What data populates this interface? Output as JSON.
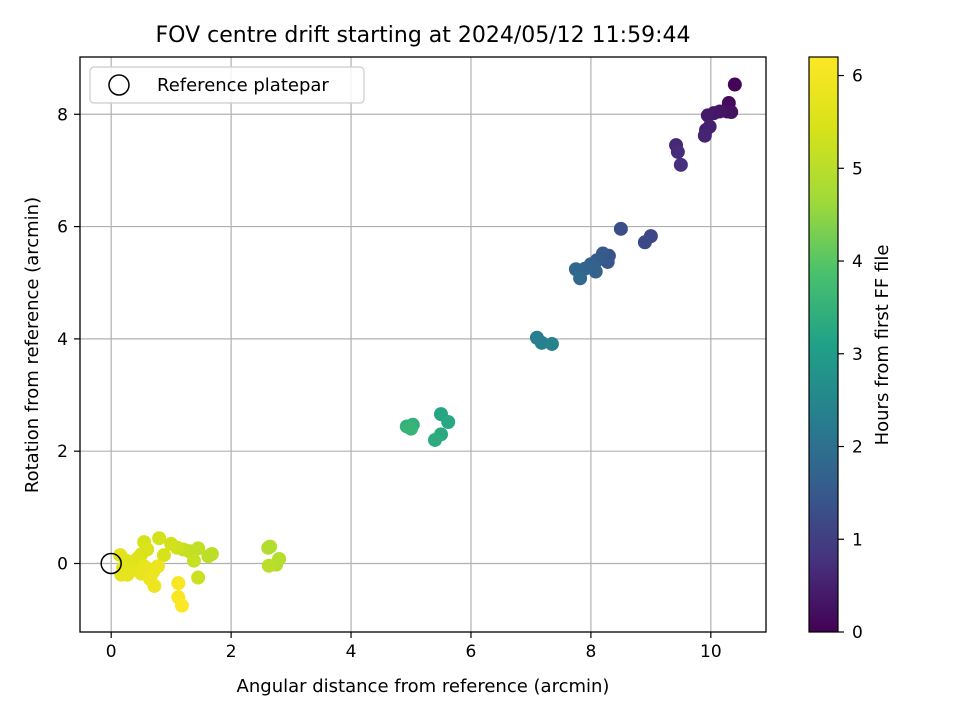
{
  "chart_data": {
    "type": "scatter",
    "title": "FOV centre drift starting at 2024/05/12 11:59:44",
    "xlabel": "Angular distance from reference (arcmin)",
    "ylabel": "Rotation from reference (arcmin)",
    "xlim": [
      -0.52,
      10.92
    ],
    "ylim": [
      -1.22,
      9.02
    ],
    "xticks": [
      0,
      2,
      4,
      6,
      8,
      10
    ],
    "yticks": [
      0,
      2,
      4,
      6,
      8
    ],
    "grid": true,
    "legend": {
      "position": "top-left",
      "entries": [
        "Reference platepar"
      ]
    },
    "colorbar": {
      "label": "Hours from first FF file",
      "range": [
        0,
        6.2
      ],
      "ticks": [
        0,
        1,
        2,
        3,
        4,
        5,
        6
      ],
      "colormap": "viridis"
    },
    "reference_point": {
      "x": 0,
      "y": 0,
      "name": "Reference platepar"
    },
    "series": [
      {
        "points": [
          {
            "x": 10.4,
            "y": 8.53,
            "c": 0.05
          },
          {
            "x": 10.3,
            "y": 8.2,
            "c": 0.15
          },
          {
            "x": 10.27,
            "y": 8.05,
            "c": 0.2
          },
          {
            "x": 10.34,
            "y": 8.04,
            "c": 0.25
          },
          {
            "x": 10.15,
            "y": 8.05,
            "c": 0.3
          },
          {
            "x": 10.05,
            "y": 8.02,
            "c": 0.35
          },
          {
            "x": 9.95,
            "y": 7.98,
            "c": 0.4
          },
          {
            "x": 9.92,
            "y": 7.72,
            "c": 0.45
          },
          {
            "x": 9.98,
            "y": 7.78,
            "c": 0.5
          },
          {
            "x": 9.9,
            "y": 7.62,
            "c": 0.55
          },
          {
            "x": 9.42,
            "y": 7.45,
            "c": 0.62
          },
          {
            "x": 9.45,
            "y": 7.33,
            "c": 0.68
          },
          {
            "x": 9.5,
            "y": 7.1,
            "c": 0.75
          },
          {
            "x": 9.0,
            "y": 5.83,
            "c": 1.15
          },
          {
            "x": 8.9,
            "y": 5.72,
            "c": 1.2
          },
          {
            "x": 8.5,
            "y": 5.96,
            "c": 1.3
          },
          {
            "x": 8.3,
            "y": 5.48,
            "c": 1.4
          },
          {
            "x": 8.28,
            "y": 5.37,
            "c": 1.45
          },
          {
            "x": 8.2,
            "y": 5.52,
            "c": 1.5
          },
          {
            "x": 8.1,
            "y": 5.4,
            "c": 1.55
          },
          {
            "x": 8.05,
            "y": 5.28,
            "c": 1.6
          },
          {
            "x": 8.0,
            "y": 5.33,
            "c": 1.65
          },
          {
            "x": 8.08,
            "y": 5.2,
            "c": 1.7
          },
          {
            "x": 7.9,
            "y": 5.25,
            "c": 1.75
          },
          {
            "x": 7.75,
            "y": 5.24,
            "c": 1.8
          },
          {
            "x": 7.82,
            "y": 5.08,
            "c": 1.85
          },
          {
            "x": 7.1,
            "y": 4.02,
            "c": 2.3
          },
          {
            "x": 7.18,
            "y": 3.93,
            "c": 2.35
          },
          {
            "x": 7.35,
            "y": 3.91,
            "c": 2.4
          },
          {
            "x": 5.5,
            "y": 2.66,
            "c": 3.2
          },
          {
            "x": 5.62,
            "y": 2.52,
            "c": 3.25
          },
          {
            "x": 5.5,
            "y": 2.3,
            "c": 3.3
          },
          {
            "x": 5.4,
            "y": 2.2,
            "c": 3.35
          },
          {
            "x": 5.03,
            "y": 2.47,
            "c": 3.45
          },
          {
            "x": 4.93,
            "y": 2.44,
            "c": 3.5
          },
          {
            "x": 5.0,
            "y": 2.4,
            "c": 3.55
          },
          {
            "x": 2.65,
            "y": 0.3,
            "c": 4.9
          },
          {
            "x": 2.62,
            "y": 0.28,
            "c": 4.92
          },
          {
            "x": 2.8,
            "y": 0.08,
            "c": 4.95
          },
          {
            "x": 2.75,
            "y": -0.02,
            "c": 4.97
          },
          {
            "x": 2.63,
            "y": -0.04,
            "c": 5.0
          },
          {
            "x": 1.68,
            "y": 0.17,
            "c": 5.02
          },
          {
            "x": 1.62,
            "y": 0.13,
            "c": 5.05
          },
          {
            "x": 1.45,
            "y": 0.27,
            "c": 5.1
          },
          {
            "x": 1.3,
            "y": 0.22,
            "c": 5.15
          },
          {
            "x": 1.2,
            "y": 0.25,
            "c": 5.18
          },
          {
            "x": 1.38,
            "y": 0.05,
            "c": 5.2
          },
          {
            "x": 1.45,
            "y": -0.25,
            "c": 5.25
          },
          {
            "x": 1.1,
            "y": 0.28,
            "c": 5.3
          },
          {
            "x": 1.0,
            "y": 0.35,
            "c": 5.35
          },
          {
            "x": 0.8,
            "y": 0.45,
            "c": 5.38
          },
          {
            "x": 0.88,
            "y": 0.15,
            "c": 5.42
          },
          {
            "x": 0.55,
            "y": 0.38,
            "c": 5.45
          },
          {
            "x": 0.6,
            "y": 0.25,
            "c": 5.48
          },
          {
            "x": 0.5,
            "y": 0.16,
            "c": 5.5
          },
          {
            "x": 0.45,
            "y": 0.1,
            "c": 5.55
          },
          {
            "x": 0.4,
            "y": 0.05,
            "c": 5.58
          },
          {
            "x": 0.3,
            "y": 0.02,
            "c": 5.6
          },
          {
            "x": 0.15,
            "y": 0.15,
            "c": 5.62
          },
          {
            "x": 0.25,
            "y": 0.05,
            "c": 5.65
          },
          {
            "x": 0.2,
            "y": -0.08,
            "c": 5.68
          },
          {
            "x": 0.35,
            "y": -0.12,
            "c": 5.7
          },
          {
            "x": 0.17,
            "y": -0.2,
            "c": 5.72
          },
          {
            "x": 0.27,
            "y": -0.2,
            "c": 5.74
          },
          {
            "x": 0.5,
            "y": -0.18,
            "c": 5.76
          },
          {
            "x": 0.55,
            "y": -0.05,
            "c": 5.78
          },
          {
            "x": 0.62,
            "y": -0.1,
            "c": 5.8
          },
          {
            "x": 0.7,
            "y": -0.15,
            "c": 5.82
          },
          {
            "x": 0.78,
            "y": -0.05,
            "c": 5.84
          },
          {
            "x": 0.65,
            "y": -0.28,
            "c": 5.86
          },
          {
            "x": 0.72,
            "y": -0.4,
            "c": 5.88
          },
          {
            "x": 1.12,
            "y": -0.35,
            "c": 6.05
          },
          {
            "x": 1.12,
            "y": -0.6,
            "c": 6.1
          },
          {
            "x": 1.18,
            "y": -0.75,
            "c": 6.15
          }
        ]
      }
    ]
  }
}
